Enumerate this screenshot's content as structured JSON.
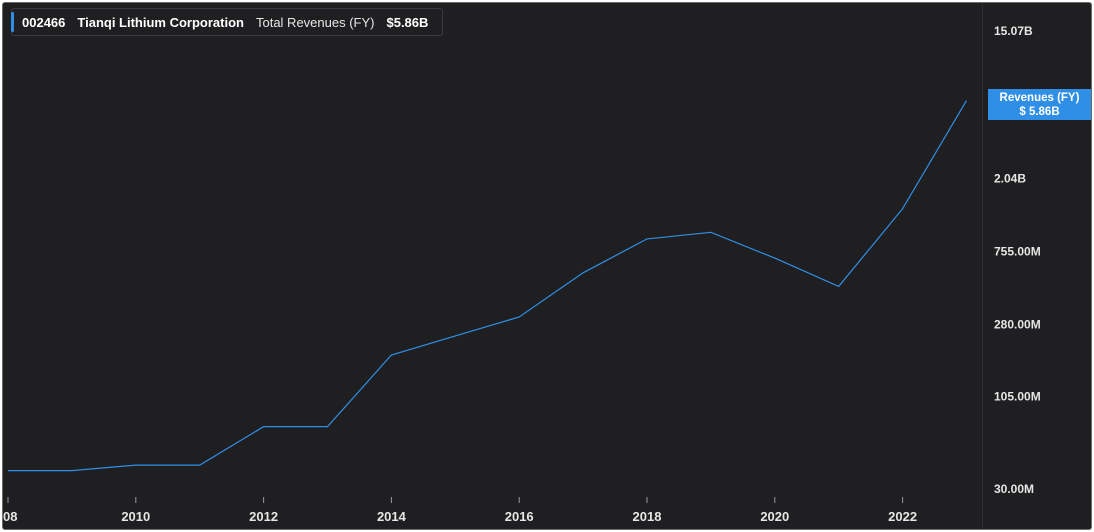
{
  "legend": {
    "ticker": "002466",
    "company": "Tianqi Lithium Corporation",
    "metric": "Total Revenues (FY)",
    "value": "$5.86B"
  },
  "badge": {
    "title": "Revenues (FY)",
    "value": "$ 5.86B"
  },
  "colors": {
    "background": "#1f1f21",
    "line": "#2f8fe6",
    "badge": "#2f8fe6",
    "text": "#e6e6e6"
  },
  "chart_data": {
    "type": "line",
    "yscale": "log",
    "x_ticks": [
      "08",
      "2010",
      "2012",
      "2014",
      "2016",
      "2018",
      "2020",
      "2022"
    ],
    "y_ticks": [
      "15.07B",
      "2.04B",
      "755.00M",
      "280.00M",
      "105.00M",
      "30.00M"
    ],
    "series": [
      {
        "x": [
          2008,
          2009,
          2010,
          2011,
          2012,
          2013,
          2014,
          2015,
          2016,
          2017,
          2018,
          2019,
          2020,
          2021,
          2022,
          2023
        ],
        "values_millions": [
          38.5,
          38.5,
          41.5,
          41.5,
          70,
          70,
          185,
          240,
          310,
          565,
          895,
          980,
          690,
          470,
          1350,
          5860
        ]
      }
    ]
  }
}
